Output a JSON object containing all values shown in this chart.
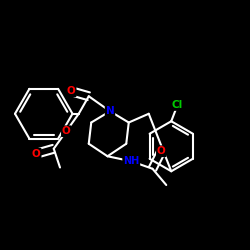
{
  "bg_color": "#000000",
  "bond_color": "#ffffff",
  "atom_colors": {
    "O": "#ff0000",
    "N": "#0000ff",
    "Cl": "#00cc00",
    "H": "#ffffff",
    "C": "#ffffff"
  },
  "figsize": [
    2.5,
    2.5
  ],
  "dpi": 100
}
